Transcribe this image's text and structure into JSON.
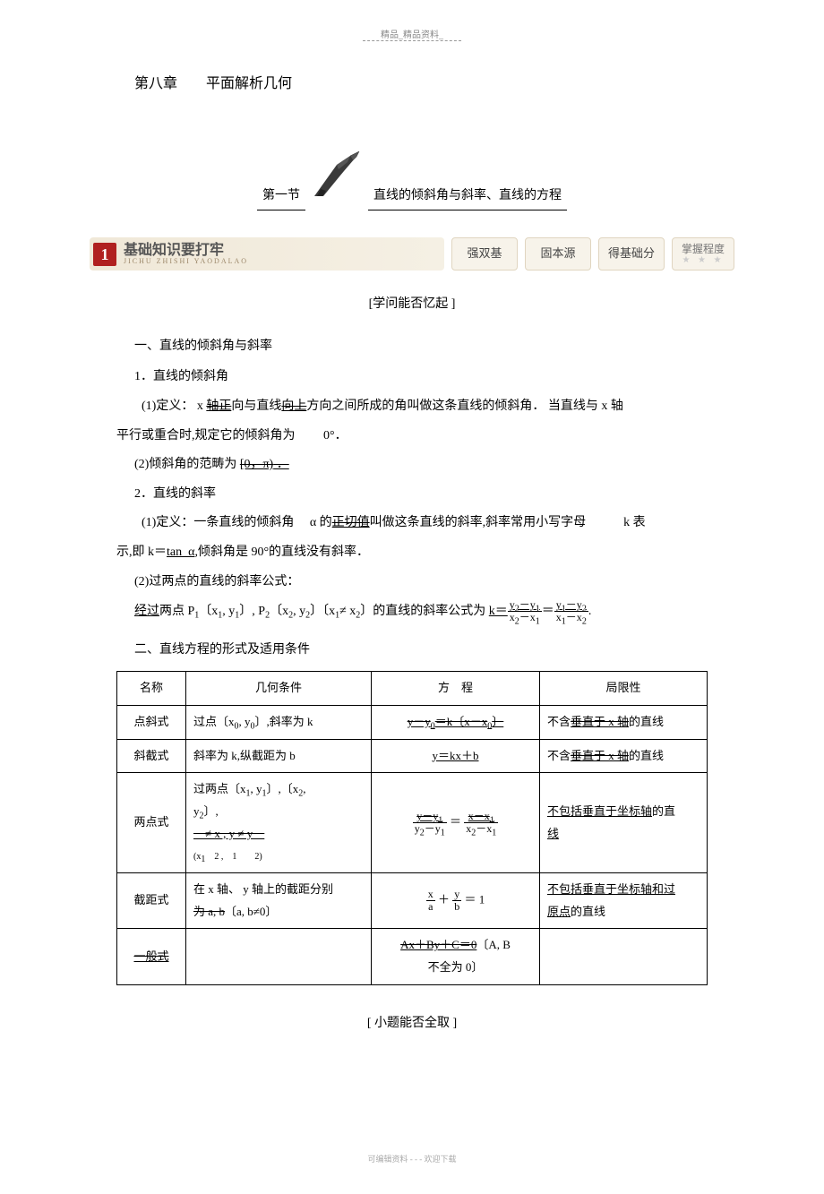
{
  "header": {
    "text": "精品_精品资料_"
  },
  "chapter": "第八章　　平面解析几何",
  "section": {
    "left": "第一节",
    "right": "直线的倾斜角与斜率、直线的方程"
  },
  "pillbar": {
    "num": "1",
    "title_cn": "基础知识要打牢",
    "title_py": "JICHU  ZHISHI  YAODALAO",
    "buttons": [
      "强双基",
      "固本源",
      "得基础分"
    ],
    "last_top": "掌握程度",
    "last_stars": "★ ★ ★"
  },
  "subhead1": "[学问能否忆起 ]",
  "content": {
    "h1": "一、直线的倾斜角与斜率",
    "c1": "1．直线的倾斜角",
    "c2a": "(1)定义：  x ",
    "c2b": "轴正",
    "c2c": "向与直线",
    "c2d": "向上",
    "c2e": "方向之间所成的角叫做这条直线的倾斜角．   当直线与 x 轴",
    "c3": "平行或重合时,规定它的倾斜角为 　　0°．",
    "c4a": "(2)倾斜角的范畴为  ",
    "c4b": "[0，π)",
    "c4c": " ．",
    "c5": "2．直线的斜率",
    "c6a": "(1)定义：一条直线的倾斜角 　α 的",
    "c6b": "正切值",
    "c6c": "叫做这条直线的斜率,斜率常用小写字母　　　k 表",
    "c7a": "示,即 k＝",
    "c7b": "tan_α",
    "c7c": ",倾斜角是  90°的直线没有斜率．",
    "c8": "(2)过两点的直线的斜率公式：",
    "c9a": "经过",
    "c9b": "两点  P",
    "c9c": "〔x",
    "c9d": ", y",
    "c9e": "〕, P",
    "c9f": "〔x",
    "c9g": ", y",
    "c9h": "〕〔x",
    "c9i": "≠ x",
    "c9j": "〕的直线的斜率公式为 ",
    "c9k": "k＝",
    "h2": "二、直线方程的形式及适用条件"
  },
  "table": {
    "headers": [
      "名称",
      "几何条件",
      "方　程",
      "局限性"
    ],
    "rows": [
      {
        "name": "点斜式",
        "cond_html": "过点〔x<sub>0</sub>, y<sub>0</sub>〕,斜率为  k",
        "eq_html": "<span class='ul-strike'>y－y<sub>0</sub>＝k〔x－x<sub>0</sub>〕</span>",
        "limit_html": "不含<span class='ul-strike'>垂直于  x 轴</span>的直线"
      },
      {
        "name": "斜截式",
        "cond_html": "斜率为 k,纵截距为  b",
        "eq_html": "<span class='ul'>y＝kx＋b</span>",
        "limit_html": "不含<span class='ul-strike'>垂直于  x 轴</span>的直线"
      },
      {
        "name": "两点式",
        "cond_html": "过两点〔x<sub>1</sub>, y<sub>1</sub>〕,〔x<sub>2</sub>,<br>y<sub>2</sub>〕,<br><span class='ul-strike'>　≠ x , y ≠ y　</span><br><span style='font-size:10px'>(x<sub>1</sub>　2 ,　1　　2)</span>",
        "eq_html": "<span class='frac'><span class='num ul-strike'>y－y<sub>1</sub></span><span class='den'>y<sub>2</sub>－y<sub>1</sub></span></span> ＝ <span class='frac'><span class='num ul-strike'>x－x<sub>1</sub></span><span class='den'>x<sub>2</sub>－x<sub>1</sub></span></span>",
        "limit_html": "<span class='ul'>不包括垂直于坐标轴</span>的直<br><span class='ul'>线</span>"
      },
      {
        "name": "截距式",
        "cond_html": "在 x 轴、 y 轴上的截距分别<br><span class='strike'>为 a, b</span>〔a, b≠0〕",
        "eq_html": "<span class='frac'><span class='num'>x</span><span class='den'>a</span></span> ＋ <span class='frac'><span class='num'>y</span><span class='den'>b</span></span> ＝ 1",
        "limit_html": "<span class='ul'>不包括垂直于坐标轴和过</span><br><span class='ul'>原点</span>的直线"
      },
      {
        "name": "一般式",
        "cond_html": "",
        "eq_html": "<span class='ul-strike'>Ax＋By＋C＝0</span>〔A, B<br>不全为 0〕",
        "limit_html": ""
      }
    ]
  },
  "subhead2": "[ 小题能否全取  ]",
  "footer": "可编辑资料  - - -  欢迎下载"
}
